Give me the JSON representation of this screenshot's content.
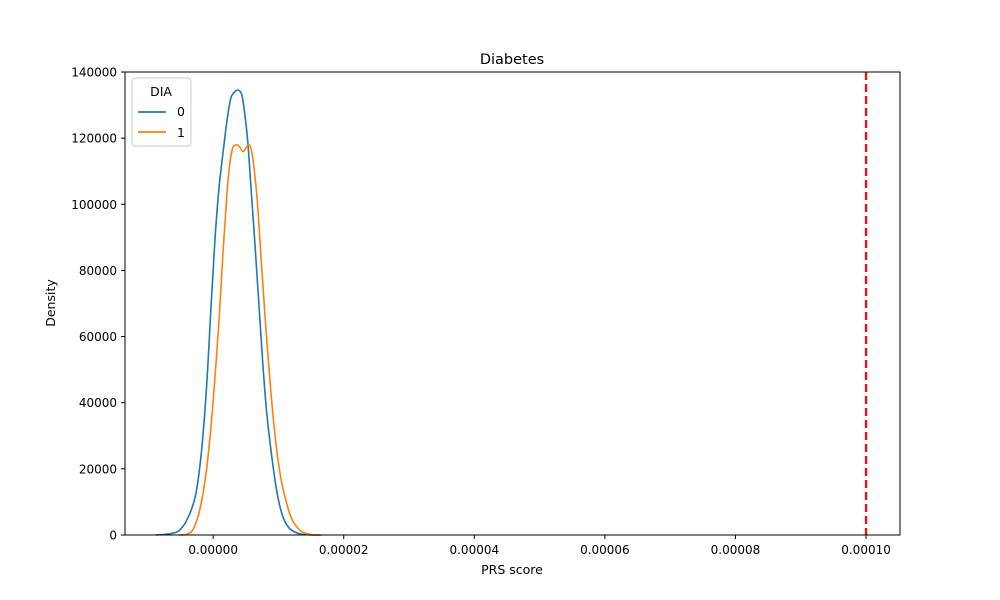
{
  "chart_data": {
    "type": "line",
    "title": "Diabetes",
    "xlabel": "PRS score",
    "ylabel": "Density",
    "xlim": [
      -1.35e-05,
      0.0001052
    ],
    "ylim": [
      0,
      140000
    ],
    "x_ticks": [
      0.0,
      2e-05,
      4e-05,
      6e-05,
      8e-05,
      0.0001
    ],
    "x_tick_labels": [
      "0.00000",
      "0.00002",
      "0.00004",
      "0.00006",
      "0.00008",
      "0.00010"
    ],
    "y_ticks": [
      0,
      20000,
      40000,
      60000,
      80000,
      100000,
      120000,
      140000
    ],
    "y_tick_labels": [
      "0",
      "20000",
      "40000",
      "60000",
      "80000",
      "100000",
      "120000",
      "140000"
    ],
    "grid": false,
    "legend": {
      "title": "DIA",
      "placement": "top-left"
    },
    "series": [
      {
        "name": "0",
        "color": "#1f77b4",
        "x": [
          -8.8e-06,
          -7e-06,
          -5.3e-06,
          -3.9e-06,
          -2.7e-06,
          -1.8e-06,
          -1e-06,
          -3e-07,
          3e-07,
          9e-07,
          1.6e-06,
          2.1e-06,
          2.7e-06,
          3.3e-06,
          3.9e-06,
          4.4e-06,
          4.8e-06,
          5.3e-06,
          5.8e-06,
          6.4e-06,
          7e-06,
          7.6e-06,
          8.2e-06,
          8.9e-06,
          9.6e-06,
          1.03e-05,
          1.1e-05,
          1.17e-05,
          1.25e-05,
          1.34e-05,
          1.44e-05,
          1.54e-05,
          1.64e-05
        ],
        "values": [
          0,
          300,
          1200,
          5000,
          12000,
          25000,
          45000,
          70000,
          90000,
          105000,
          117000,
          125000,
          132000,
          134000,
          134500,
          133000,
          128000,
          119000,
          105000,
          88000,
          70000,
          52000,
          37000,
          25000,
          15000,
          8000,
          4000,
          2000,
          900,
          300,
          100,
          0,
          0
        ]
      },
      {
        "name": "1",
        "color": "#ff7f0e",
        "x": [
          -5.3e-06,
          -3.9e-06,
          -3e-06,
          -2e-06,
          -1e-06,
          -1e-07,
          8e-07,
          1.5e-06,
          2.1e-06,
          2.6e-06,
          3e-06,
          3.5e-06,
          4e-06,
          4.6e-06,
          5.2e-06,
          5.7e-06,
          6.2e-06,
          6.8e-06,
          7.4e-06,
          8.1e-06,
          8.9e-06,
          9.6e-06,
          1.03e-05,
          1.12e-05,
          1.2e-05,
          1.28e-05,
          1.36e-05,
          1.46e-05,
          1.56e-05,
          1.66e-05
        ],
        "values": [
          0,
          300,
          2000,
          8000,
          20000,
          38000,
          62000,
          85000,
          103000,
          113000,
          117000,
          118000,
          117500,
          116000,
          117500,
          117500,
          112000,
          100000,
          82000,
          62000,
          42000,
          28000,
          18000,
          10000,
          5000,
          2500,
          1000,
          300,
          0,
          0
        ]
      }
    ],
    "reference_line": {
      "x": 0.0001,
      "color": "#e31a1c",
      "style": "dashed"
    }
  }
}
